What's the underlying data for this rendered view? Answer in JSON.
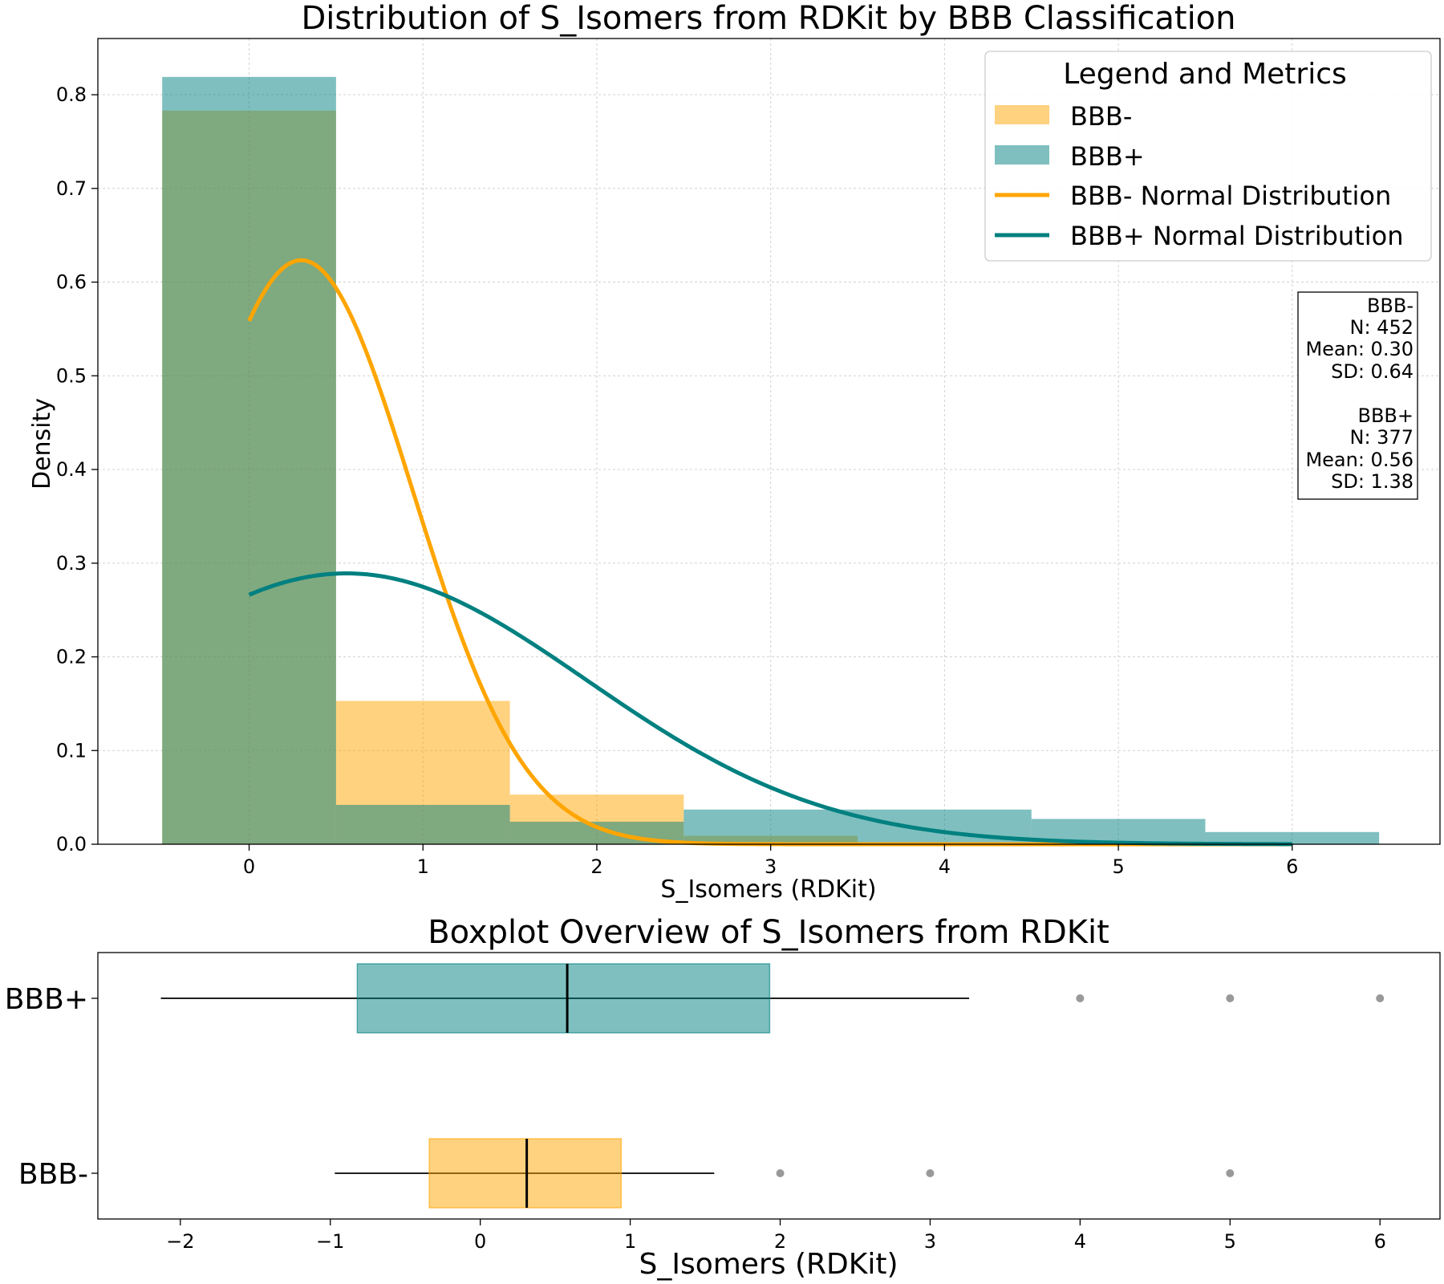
{
  "chart_data": [
    {
      "type": "histogram",
      "title": "Distribution of S_Isomers from RDKit by BBB Classification",
      "xlabel": "S_Isomers (RDKit)",
      "ylabel": "Density",
      "xlim": [
        -0.87,
        6.85
      ],
      "ylim": [
        0,
        0.86
      ],
      "xticks": [
        "0",
        "1",
        "2",
        "3",
        "4",
        "5",
        "6"
      ],
      "yticks": [
        "0.0",
        "0.1",
        "0.2",
        "0.3",
        "0.4",
        "0.5",
        "0.6",
        "0.7",
        "0.8"
      ],
      "grid": true,
      "legend_title": "Legend and Metrics",
      "legend_position": "top-right",
      "series": [
        {
          "name": "BBB-",
          "color": "#FFA500",
          "bins": [
            {
              "x0": -0.5,
              "x1": 0.5,
              "density": 0.783
            },
            {
              "x0": 0.5,
              "x1": 1.5,
              "density": 0.153
            },
            {
              "x0": 1.5,
              "x1": 2.5,
              "density": 0.053
            },
            {
              "x0": 2.5,
              "x1": 3.5,
              "density": 0.009
            },
            {
              "x0": 3.5,
              "x1": 4.5,
              "density": 0.0
            },
            {
              "x0": 4.5,
              "x1": 5.5,
              "density": 0.002
            }
          ]
        },
        {
          "name": "BBB+",
          "color": "#008080",
          "bins": [
            {
              "x0": -0.5,
              "x1": 0.5,
              "density": 0.819
            },
            {
              "x0": 0.5,
              "x1": 1.5,
              "density": 0.042
            },
            {
              "x0": 1.5,
              "x1": 2.5,
              "density": 0.024
            },
            {
              "x0": 2.5,
              "x1": 4.5,
              "density": 0.037
            },
            {
              "x0": 4.5,
              "x1": 5.5,
              "density": 0.027
            },
            {
              "x0": 5.5,
              "x1": 6.5,
              "density": 0.013
            }
          ]
        }
      ],
      "curves": [
        {
          "name": "BBB- Normal Distribution",
          "color": "#FFA500",
          "mean": 0.3,
          "sd": 0.64,
          "x_range": [
            0,
            6
          ]
        },
        {
          "name": "BBB+ Normal Distribution",
          "color": "#008080",
          "mean": 0.56,
          "sd": 1.38,
          "x_range": [
            0,
            6
          ]
        }
      ],
      "metrics": [
        {
          "group": "BBB-",
          "n": "N: 452",
          "mean": "Mean: 0.30",
          "sd": "SD: 0.64"
        },
        {
          "group": "BBB+",
          "n": "N: 377",
          "mean": "Mean: 0.56",
          "sd": "SD: 1.38"
        }
      ]
    },
    {
      "type": "boxplot",
      "title": "Boxplot Overview of S_Isomers from RDKit",
      "xlabel": "S_Isomers (RDKit)",
      "xlim": [
        -2.55,
        6.4
      ],
      "xticks": [
        "−2",
        "−1",
        "0",
        "1",
        "2",
        "3",
        "4",
        "5",
        "6"
      ],
      "categories": [
        "BBB+",
        "BBB-"
      ],
      "boxes": [
        {
          "name": "BBB+",
          "color": "#008080",
          "whisker_low": -2.13,
          "q1": -0.82,
          "median": 0.58,
          "q3": 1.93,
          "whisker_high": 3.26,
          "outliers": [
            4,
            5,
            6
          ]
        },
        {
          "name": "BBB-",
          "color": "#FFA500",
          "whisker_low": -0.97,
          "q1": -0.34,
          "median": 0.31,
          "q3": 0.94,
          "whisker_high": 1.56,
          "outliers": [
            2,
            3,
            5
          ]
        }
      ]
    }
  ]
}
